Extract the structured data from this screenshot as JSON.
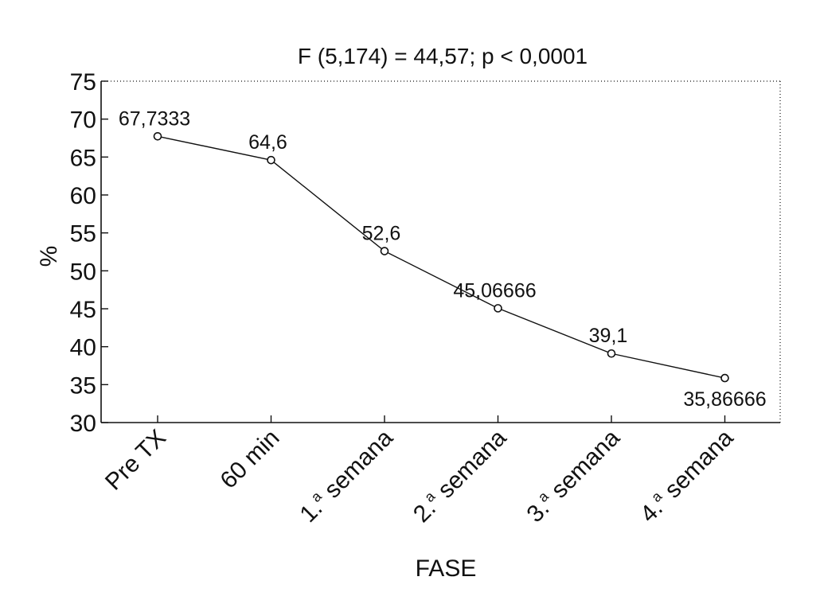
{
  "chart_data": {
    "type": "line",
    "title": "F (5,174) = 44,57; p < 0,0001",
    "xlabel": "FASE",
    "ylabel": "%",
    "categories": [
      "Pre TX",
      "60 min",
      "1.ª semana",
      "2.ª semana",
      "3.ª semana",
      "4.ª semana"
    ],
    "category_labels": [
      {
        "main": "Pre TX",
        "sup": ""
      },
      {
        "main": "60 min",
        "sup": ""
      },
      {
        "main": "1.",
        "sup": "a",
        "rest": " semana"
      },
      {
        "main": "2.",
        "sup": "a",
        "rest": " semana"
      },
      {
        "main": "3.",
        "sup": "a",
        "rest": " semana"
      },
      {
        "main": "4.",
        "sup": "a",
        "rest": " semana"
      }
    ],
    "series": [
      {
        "values": [
          67.7333,
          64.6,
          52.6,
          45.06666,
          39.1,
          35.86666
        ],
        "data_labels": [
          "67,7333",
          "64,6",
          "52,6",
          "45,06666",
          "39,1",
          "35,86666"
        ],
        "marker": "open-circle",
        "color": "#111111"
      }
    ],
    "yticks": [
      30,
      35,
      40,
      45,
      50,
      55,
      60,
      65,
      70,
      75
    ],
    "ylim": [
      30,
      75
    ],
    "grid": false,
    "legend": "none"
  }
}
